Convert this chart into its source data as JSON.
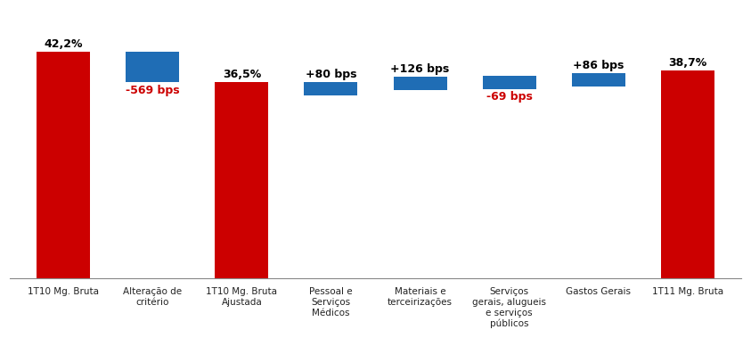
{
  "categories": [
    "1T10 Mg. Bruta",
    "Alteração de\ncritério",
    "1T10 Mg. Bruta\nAjustada",
    "Pessoal e\nServiços\nMédicos",
    "Materiais e\nterceirizações",
    "Serviços\ngerais, alugueis\ne serviços\npúblicos",
    "Gastos Gerais",
    "1T11 Mg. Bruta"
  ],
  "bar_bottoms": [
    0,
    36.5,
    0,
    34.0,
    35.0,
    35.3,
    35.7,
    0
  ],
  "bar_heights": [
    42.2,
    5.7,
    36.5,
    2.5,
    2.5,
    2.5,
    2.5,
    38.7
  ],
  "bar_colors": [
    "#cc0000",
    "#1f6db5",
    "#cc0000",
    "#1f6db5",
    "#1f6db5",
    "#1f6db5",
    "#1f6db5",
    "#cc0000"
  ],
  "bar_labels": [
    "42,2%",
    "-569 bps",
    "36,5%",
    "+80 bps",
    "+126 bps",
    "-69 bps",
    "+86 bps",
    "38,7%"
  ],
  "label_colors": [
    "#000000",
    "#cc0000",
    "#000000",
    "#000000",
    "#000000",
    "#cc0000",
    "#000000",
    "#000000"
  ],
  "label_above": [
    true,
    false,
    true,
    true,
    true,
    false,
    true,
    true
  ],
  "ylim": [
    0,
    50
  ],
  "background_color": "#ffffff",
  "bar_width": 0.6,
  "figsize": [
    8.43,
    3.79
  ],
  "dpi": 100
}
